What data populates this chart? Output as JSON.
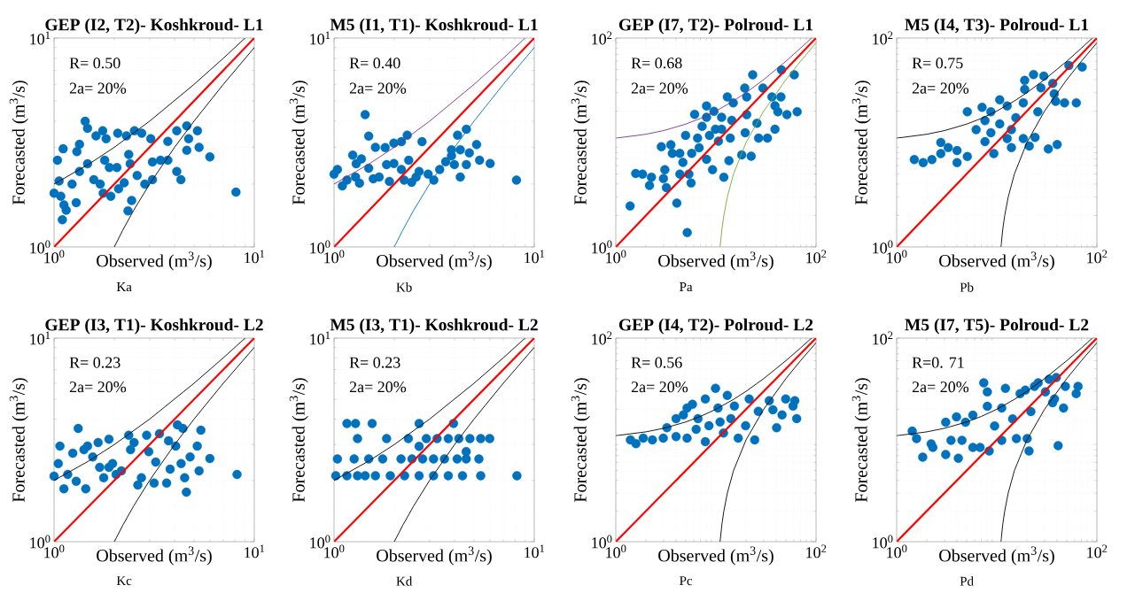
{
  "chart_data": [
    {
      "type": "scatter",
      "title": "GEP (I2, T2)- Koshkroud- L1",
      "xlabel": "Observed (m$^{3}$/s)",
      "ylabel": "Forecasted (m$^{3}$/s)",
      "annotations": [
        "R= 0.50",
        "2a= 20%",
        "Ka"
      ],
      "log": "xy",
      "grid": true,
      "xlim": [
        1,
        10
      ],
      "ylim": [
        1,
        10
      ],
      "xticks": [
        {
          "value": 1,
          "label": "10$^{0}$"
        },
        {
          "value": 10,
          "label": "10$^{1}$"
        }
      ],
      "yticks": [
        {
          "value": 1,
          "label": "10$^{0}$"
        },
        {
          "value": 10,
          "label": "10$^{1}$"
        }
      ],
      "series": [
        {
          "type": "scatter",
          "marker": "circle",
          "color": "#0072bd",
          "x": [
            1.43,
            1.47,
            1.75,
            1.62,
            1.82,
            2.08,
            2.52,
            2.74,
            2.3,
            3.04,
            3.7,
            4.1,
            4.6,
            5.2,
            4.7,
            5.3,
            6.0,
            4.6,
            3.4,
            3.1,
            4.1,
            4.3,
            3.1,
            2.84,
            2.6,
            2.36,
            2.4,
            2.06,
            1.89,
            1.79,
            1.47,
            1.34,
            1.3,
            1.34,
            1.11,
            1.04,
            1.06,
            1.0,
            1.08,
            1.12,
            1.1,
            1.15,
            1.29,
            1.23,
            1.58,
            1.7,
            1.76,
            1.92,
            2.24,
            2.44,
            2.34,
            8.1,
            3.7,
            2.1
          ],
          "values": [
            4.0,
            3.7,
            3.6,
            3.4,
            3.3,
            3.5,
            3.6,
            3.5,
            3.4,
            3.3,
            3.2,
            3.6,
            3.8,
            3.6,
            3.3,
            3.0,
            2.7,
            2.9,
            2.6,
            2.55,
            2.3,
            2.1,
            2.1,
            2.0,
            2.2,
            2.77,
            2.5,
            2.4,
            2.4,
            2.6,
            2.5,
            2.3,
            2.86,
            3.1,
            2.95,
            2.6,
            2.07,
            1.81,
            1.75,
            1.59,
            1.35,
            1.5,
            1.63,
            2.0,
            2.1,
            2.0,
            1.81,
            1.75,
            2.03,
            1.67,
            1.49,
            1.83,
            2.6,
            1.9
          ]
        },
        {
          "type": "line",
          "marker": "none",
          "color": "#ff0000",
          "x": [
            1,
            10
          ],
          "values": [
            1,
            10
          ]
        },
        {
          "type": "line",
          "marker": "none",
          "color": "#000000",
          "x": [
            1,
            1.5,
            2,
            3,
            5,
            7,
            9
          ],
          "values": [
            2,
            2.5,
            3,
            4,
            6,
            8,
            10
          ]
        },
        {
          "type": "line",
          "marker": "none",
          "color": "#000000",
          "x": [
            2,
            2.2,
            2.5,
            3,
            4,
            5,
            7,
            10
          ],
          "values": [
            1,
            1.2,
            1.5,
            2,
            3,
            4,
            6,
            9
          ]
        }
      ]
    },
    {
      "type": "scatter",
      "title": "M5 (I1, T1)- Koshkroud- L1",
      "xlabel": "Observed (m$^{3}$/s)",
      "ylabel": "Forecasted (m$^{3}$/s)",
      "annotations": [
        "R= 0.40",
        "2a= 20%",
        "Kb"
      ],
      "log": "xy",
      "grid": true,
      "xlim": [
        1,
        10
      ],
      "ylim": [
        1,
        10
      ],
      "xticks": [
        {
          "value": 1,
          "label": "10$^{0}$"
        },
        {
          "value": 10,
          "label": "10$^{1}$"
        }
      ],
      "yticks": [
        {
          "value": 1,
          "label": "10$^{0}$"
        },
        {
          "value": 10,
          "label": "10$^{1}$"
        }
      ],
      "series": [
        {
          "type": "scatter",
          "marker": "circle",
          "color": "#0072bd",
          "x": [
            1.43,
            1.49,
            1.24,
            1.0,
            1.04,
            1.1,
            1.16,
            1.28,
            1.34,
            1.29,
            1.37,
            1.49,
            1.57,
            1.68,
            1.61,
            1.8,
            1.99,
            2.17,
            2.32,
            1.83,
            1.99,
            2.17,
            2.36,
            1.89,
            2.24,
            2.44,
            2.66,
            2.75,
            2.57,
            2.95,
            3.15,
            3.37,
            3.61,
            3.86,
            4.14,
            4.58,
            4.27,
            4.74,
            4.58,
            4.27,
            5.15,
            5.33,
            6.02,
            8.15,
            3.99,
            3.86
          ],
          "values": [
            4.3,
            3.39,
            2.75,
            2.23,
            2.35,
            1.96,
            2.09,
            2.16,
            2.02,
            2.5,
            2.64,
            2.38,
            2.12,
            2.16,
            3.0,
            2.99,
            3.14,
            3.19,
            3.43,
            2.48,
            2.51,
            2.35,
            2.6,
            2.06,
            2.09,
            2.04,
            2.3,
            3.19,
            2.16,
            2.23,
            2.09,
            2.35,
            2.56,
            2.73,
            3.43,
            3.66,
            2.92,
            2.82,
            2.48,
            2.16,
            3.09,
            2.6,
            2.51,
            2.09,
            2.48,
            2.92
          ]
        },
        {
          "type": "line",
          "marker": "none",
          "color": "#ff0000",
          "x": [
            1,
            10
          ],
          "values": [
            1,
            10
          ]
        },
        {
          "type": "line",
          "marker": "none",
          "color": "#7e2f8e",
          "x": [
            1,
            1.5,
            2,
            3,
            5,
            7,
            9
          ],
          "values": [
            2,
            2.5,
            3,
            4,
            6,
            8,
            10
          ]
        },
        {
          "type": "line",
          "marker": "none",
          "color": "#0072bd",
          "x": [
            2,
            2.2,
            2.5,
            3,
            4,
            5,
            7,
            10
          ],
          "values": [
            1,
            1.2,
            1.5,
            2,
            3,
            4,
            6,
            9
          ]
        }
      ]
    },
    {
      "type": "scatter",
      "title": "GEP (I7, T2)- Polroud- L1",
      "xlabel": "Observed (m$^{3}$/s)",
      "ylabel": "Forecasted (m$^{3}$/s)",
      "annotations": [
        "R= 0.68",
        "2a= 20%",
        "Pa"
      ],
      "log": "xy",
      "grid": true,
      "xlim": [
        1,
        100
      ],
      "ylim": [
        1,
        100
      ],
      "xticks": [
        {
          "value": 1,
          "label": "10$^{0}$"
        },
        {
          "value": 100,
          "label": "10$^{2}$"
        }
      ],
      "yticks": [
        {
          "value": 1,
          "label": "10$^{0}$"
        },
        {
          "value": 100,
          "label": "10$^{2}$"
        }
      ],
      "series": [
        {
          "type": "scatter",
          "marker": "circle",
          "color": "#0072bd",
          "x": [
            1.39,
            1.58,
            1.85,
            2.27,
            2.17,
            3.2,
            2.99,
            3.09,
            2.85,
            3.55,
            3.67,
            4.07,
            5.17,
            4.36,
            5.37,
            5.65,
            4.68,
            5.73,
            4.98,
            6.56,
            7.28,
            8.06,
            6.8,
            8.06,
            9.25,
            8.63,
            9.9,
            9.55,
            11.4,
            10.6,
            12.0,
            13.5,
            13.9,
            11.4,
            14.4,
            18.1,
            22.5,
            19.6,
            20.3,
            19.4,
            23.3,
            20.3,
            25.7,
            26.7,
            32.7,
            38.9,
            29.5,
            36.3,
            44.6,
            38.9,
            41.6,
            51.2,
            64.8,
            60.6,
            45.2,
            6.13,
            8.06,
            4.36,
            13.0,
            14.9
          ],
          "values": [
            2.47,
            5.05,
            4.98,
            4.66,
            3.88,
            3.7,
            4.52,
            5.5,
            9.1,
            9.5,
            7.87,
            2.63,
            1.37,
            4.98,
            4.98,
            4.09,
            6.46,
            7.87,
            11.7,
            11.0,
            14.3,
            17.4,
            8.9,
            6.9,
            5.5,
            11.7,
            13.4,
            19.9,
            17.4,
            10.3,
            4.66,
            6.7,
            11.0,
            13.4,
            16.3,
            7.6,
            7.4,
            12.4,
            18.5,
            33.2,
            44.5,
            27.3,
            15.3,
            11.0,
            11.0,
            13.4,
            33.2,
            27.3,
            27.3,
            22.5,
            19.7,
            18.5,
            19.7,
            44.5,
            49.5,
            18.6,
            22.4,
            7.87,
            27.3,
            24
          ]
        },
        {
          "type": "line",
          "marker": "none",
          "color": "#ff0000",
          "x": [
            1,
            100
          ],
          "values": [
            1,
            100
          ]
        },
        {
          "type": "line",
          "marker": "none",
          "color": "#7e2f8e",
          "x": [
            1,
            2,
            3,
            5,
            7,
            10,
            15,
            20,
            30,
            50,
            70,
            90
          ],
          "values": [
            11,
            12,
            13,
            15,
            17,
            20,
            25,
            30,
            40,
            60,
            80,
            100
          ]
        },
        {
          "type": "line",
          "marker": "none",
          "color": "#77ac30",
          "x": [
            11,
            11.5,
            12,
            13,
            15,
            20,
            30,
            50,
            70,
            100
          ],
          "values": [
            1,
            1.5,
            2,
            3,
            5,
            10,
            20,
            40,
            60,
            90
          ]
        }
      ]
    },
    {
      "type": "scatter",
      "title": "M5 (I4, T3)- Polroud- L1",
      "xlabel": "Observed (m$^{3}$/s)",
      "ylabel": "Forecasted (m$^{3}$/s)",
      "annotations": [
        "R= 0.75",
        "2a= 20%",
        "Pb"
      ],
      "log": "xy",
      "grid": true,
      "xlim": [
        1,
        100
      ],
      "ylim": [
        1,
        100
      ],
      "xticks": [
        {
          "value": 1,
          "label": "10$^{0}$"
        },
        {
          "value": 100,
          "label": "10$^{2}$"
        }
      ],
      "yticks": [
        {
          "value": 1,
          "label": "10$^{0}$"
        },
        {
          "value": 100,
          "label": "10$^{2}$"
        }
      ],
      "series": [
        {
          "type": "scatter",
          "marker": "circle",
          "color": "#0072bd",
          "x": [
            1.5,
            1.84,
            2.25,
            2.76,
            2.76,
            3.27,
            4.01,
            4.01,
            5.08,
            5.08,
            6.22,
            7.13,
            7.62,
            8.73,
            9.34,
            8.73,
            10.7,
            12.7,
            10.7,
            12.7,
            14.0,
            15.5,
            14.0,
            18.4,
            21.1,
            24.1,
            18.4,
            19.0,
            19.0,
            23.3,
            29.5,
            27.6,
            36.2,
            37.5,
            38.7,
            47.5,
            62.3,
            52.5,
            71.3,
            32.7,
            40.1,
            25.7,
            7.62
          ],
          "values": [
            6.86,
            6.42,
            6.86,
            7.83,
            10,
            8.94,
            6.42,
            8.37,
            7.34,
            19.7,
            13.3,
            21.7,
            10.2,
            12.4,
            7.83,
            19.7,
            25.6,
            22.4,
            15.1,
            10.9,
            13.3,
            17.3,
            8.94,
            10.9,
            9.25,
            11.2,
            24.0,
            32.3,
            39.3,
            44.8,
            43.3,
            33.4,
            36.8,
            29.2,
            24.8,
            24.0,
            24.0,
            54.6,
            52.8,
            8.66,
            9.55,
            19.7,
            16.2
          ]
        },
        {
          "type": "line",
          "marker": "none",
          "color": "#ff0000",
          "x": [
            1,
            100
          ],
          "values": [
            1,
            100
          ]
        },
        {
          "type": "line",
          "marker": "none",
          "color": "#000000",
          "x": [
            1,
            2,
            3,
            5,
            7,
            10,
            15,
            20,
            30,
            50,
            70,
            90
          ],
          "values": [
            11,
            12,
            13,
            15,
            17,
            20,
            25,
            30,
            40,
            60,
            80,
            100
          ]
        },
        {
          "type": "line",
          "marker": "none",
          "color": "#000000",
          "x": [
            11,
            11.5,
            12,
            13,
            15,
            20,
            30,
            50,
            70,
            100
          ],
          "values": [
            1,
            1.5,
            2,
            3,
            5,
            10,
            20,
            40,
            60,
            90
          ]
        }
      ]
    },
    {
      "type": "scatter",
      "title": "GEP (I3, T1)- Koshkroud- L2",
      "xlabel": "Observed (m$^{3}$/s)",
      "ylabel": "Forecasted (m$^{3}$/s)",
      "annotations": [
        "R= 0.23",
        "2a= 20%",
        "Kc"
      ],
      "log": "xy",
      "grid": true,
      "xlim": [
        1,
        10
      ],
      "ylim": [
        1,
        10
      ],
      "xticks": [
        {
          "value": 1,
          "label": "10$^{0}$"
        },
        {
          "value": 10,
          "label": "10$^{1}$"
        }
      ],
      "yticks": [
        {
          "value": 1,
          "label": "10$^{0}$"
        },
        {
          "value": 10,
          "label": "10$^{1}$"
        }
      ],
      "series": [
        {
          "type": "scatter",
          "marker": "circle",
          "color": "#0072bd",
          "x": [
            1.0,
            1.05,
            1.07,
            1.12,
            1.17,
            1.24,
            1.29,
            1.32,
            1.44,
            1.47,
            1.56,
            1.66,
            1.69,
            1.77,
            1.88,
            1.88,
            2.04,
            2.17,
            2.36,
            2.41,
            2.51,
            2.62,
            2.73,
            2.9,
            2.97,
            3.16,
            3.22,
            3.36,
            3.65,
            3.73,
            3.8,
            4.05,
            4.13,
            4.31,
            4.4,
            4.58,
            4.49,
            4.78,
            5.19,
            5.41,
            5.3,
            6.0,
            8.2,
            1.41,
            1.96
          ],
          "values": [
            2.1,
            2.42,
            2.95,
            1.82,
            2.14,
            2.72,
            1.98,
            3.6,
            1.82,
            2.95,
            2.61,
            3.07,
            2.32,
            2.06,
            3.19,
            2.32,
            2.14,
            2.23,
            3.33,
            2.83,
            3.07,
            1.9,
            2.06,
            3.33,
            2.77,
            1.94,
            2.46,
            3.39,
            1.94,
            3.13,
            2.27,
            2.95,
            3.75,
            2.42,
            3.6,
            1.75,
            2.06,
            2.61,
            2.95,
            3.53,
            2.23,
            2.56,
            2.14,
            2.83,
            2.42
          ]
        },
        {
          "type": "line",
          "marker": "none",
          "color": "#ff0000",
          "x": [
            1,
            10
          ],
          "values": [
            1,
            10
          ]
        },
        {
          "type": "line",
          "marker": "none",
          "color": "#000000",
          "x": [
            1,
            1.5,
            2,
            3,
            5,
            7,
            9
          ],
          "values": [
            2,
            2.5,
            3,
            4,
            6,
            8,
            10
          ]
        },
        {
          "type": "line",
          "marker": "none",
          "color": "#000000",
          "x": [
            2,
            2.2,
            2.5,
            3,
            4,
            5,
            7,
            10
          ],
          "values": [
            1,
            1.2,
            1.5,
            2,
            3,
            4,
            6,
            9
          ]
        }
      ]
    },
    {
      "type": "scatter",
      "title": "M5 (I3, T1)- Koshkroud- L2",
      "xlabel": "Observed (m$^{3}$/s)",
      "ylabel": "Forecasted (m$^{3}$/s)",
      "annotations": [
        "R= 0.23",
        "2a= 20%",
        "Kd"
      ],
      "log": "xy",
      "grid": true,
      "xlim": [
        1,
        10
      ],
      "ylim": [
        1,
        10
      ],
      "xticks": [
        {
          "value": 1,
          "label": "10$^{0}$"
        },
        {
          "value": 10,
          "label": "10$^{1}$"
        }
      ],
      "yticks": [
        {
          "value": 1,
          "label": "10$^{0}$"
        },
        {
          "value": 10,
          "label": "10$^{1}$"
        }
      ],
      "series": [
        {
          "type": "scatter",
          "marker": "circle",
          "color": "#0072bd",
          "x": [
            1.02,
            1.16,
            1.31,
            1.43,
            1.61,
            1.91,
            2.25,
            2.66,
            3.14,
            3.72,
            4.38,
            5.4,
            8.19,
            1.04,
            1.26,
            1.49,
            1.75,
            2.16,
            2.45,
            2.77,
            3.14,
            3.56,
            4.12,
            4.57,
            5.29,
            1.31,
            1.83,
            2.35,
            2.89,
            3.27,
            3.72,
            4.2,
            4.77,
            5.4,
            5.99,
            1.16,
            1.28,
            1.55,
            2.66,
            3.95,
            2.66,
            4.57
          ],
          "values": [
            2.11,
            2.11,
            2.11,
            2.11,
            2.11,
            2.11,
            2.11,
            2.11,
            2.11,
            2.11,
            2.11,
            2.11,
            2.11,
            2.55,
            2.55,
            2.55,
            2.55,
            2.55,
            2.55,
            2.55,
            2.55,
            2.55,
            2.55,
            2.55,
            2.55,
            3.21,
            3.21,
            3.21,
            3.21,
            3.21,
            3.21,
            3.21,
            3.21,
            3.21,
            3.21,
            3.81,
            3.81,
            3.81,
            3.81,
            3.81,
            2.94,
            2.77
          ]
        },
        {
          "type": "line",
          "marker": "none",
          "color": "#ff0000",
          "x": [
            1,
            10
          ],
          "values": [
            1,
            10
          ]
        },
        {
          "type": "line",
          "marker": "none",
          "color": "#000000",
          "x": [
            1,
            1.5,
            2,
            3,
            5,
            7,
            9
          ],
          "values": [
            2,
            2.5,
            3,
            4,
            6,
            8,
            10
          ]
        },
        {
          "type": "line",
          "marker": "none",
          "color": "#000000",
          "x": [
            2,
            2.2,
            2.5,
            3,
            4,
            5,
            7,
            10
          ],
          "values": [
            1,
            1.2,
            1.5,
            2,
            3,
            4,
            6,
            9
          ]
        }
      ]
    },
    {
      "type": "scatter",
      "title": "GEP (I4, T2)- Polroud- L2",
      "xlabel": "Observed (m$^{3}$/s)",
      "ylabel": "Forecasted (m$^{3}$/s)",
      "annotations": [
        "R= 0.56",
        "2a= 20%",
        "Pc"
      ],
      "log": "xy",
      "grid": true,
      "xlim": [
        1,
        100
      ],
      "ylim": [
        1,
        100
      ],
      "xticks": [
        {
          "value": 1,
          "label": "10$^{0}$"
        },
        {
          "value": 100,
          "label": "10$^{2}$"
        }
      ],
      "yticks": [
        {
          "value": 1,
          "label": "10$^{0}$"
        },
        {
          "value": 100,
          "label": "10$^{2}$"
        }
      ],
      "series": [
        {
          "type": "scatter",
          "marker": "circle",
          "color": "#0072bd",
          "x": [
            1.4,
            1.59,
            1.88,
            2.32,
            2.98,
            3.24,
            4.0,
            4.0,
            5.15,
            5.15,
            6.35,
            6.62,
            7.84,
            7.84,
            8.52,
            9.91,
            10.5,
            11.9,
            13.0,
            14.1,
            15.3,
            16.7,
            19.8,
            21.5,
            24.4,
            26.5,
            34.1,
            37.1,
            40.4,
            45.8,
            49.8,
            61.4,
            64.1,
            58.9,
            4.73,
            5.83,
            11.0
          ],
          "values": [
            10,
            9.2,
            10.4,
            10,
            10.4,
            13.2,
            16.2,
            10.8,
            20.6,
            10.4,
            12.7,
            16.2,
            25.2,
            9.6,
            13.8,
            32.1,
            20.6,
            11.7,
            27.4,
            16.2,
            21.5,
            10.4,
            13.8,
            25.2,
            10,
            19.1,
            24.3,
            19.8,
            13.2,
            17.6,
            25.2,
            24.3,
            16.2,
            21.5,
            17.6,
            22.4,
            15.0
          ]
        },
        {
          "type": "line",
          "marker": "none",
          "color": "#ff0000",
          "x": [
            1,
            100
          ],
          "values": [
            1,
            100
          ]
        },
        {
          "type": "line",
          "marker": "none",
          "color": "#000000",
          "x": [
            1,
            2,
            3,
            5,
            7,
            10,
            15,
            20,
            30,
            50,
            70,
            90
          ],
          "values": [
            11,
            12,
            13,
            15,
            17,
            20,
            25,
            30,
            40,
            60,
            80,
            100
          ]
        },
        {
          "type": "line",
          "marker": "none",
          "color": "#000000",
          "x": [
            11,
            11.5,
            12,
            13,
            15,
            20,
            30,
            50,
            70,
            100
          ],
          "values": [
            1,
            1.5,
            2,
            3,
            5,
            10,
            20,
            40,
            60,
            90
          ]
        }
      ]
    },
    {
      "type": "scatter",
      "title": "M5 (I7, T5)- Polroud- L2",
      "xlabel": "Observed (m$^{3}$/s)",
      "ylabel": "Forecasted (m$^{3}$/s)",
      "annotations": [
        "R=0. 71",
        "2a= 20%",
        "Pd"
      ],
      "log": "xy",
      "grid": true,
      "xlim": [
        1,
        100
      ],
      "ylim": [
        1,
        100
      ],
      "xticks": [
        {
          "value": 1,
          "label": "10$^{0}$"
        },
        {
          "value": 100,
          "label": "10$^{2}$"
        }
      ],
      "yticks": [
        {
          "value": 1,
          "label": "10$^{0}$"
        },
        {
          "value": 100,
          "label": "10$^{2}$"
        }
      ],
      "series": [
        {
          "type": "scatter",
          "marker": "circle",
          "color": "#0072bd",
          "x": [
            1.43,
            1.58,
            1.82,
            2.21,
            2.3,
            3.09,
            3.09,
            3.49,
            3.96,
            4.13,
            4.49,
            4.87,
            5.77,
            5.77,
            7.41,
            8.05,
            8.05,
            6.81,
            8.4,
            9.51,
            11.2,
            11.2,
            12.2,
            14.4,
            15.7,
            17.1,
            19.3,
            20.1,
            21.0,
            21.9,
            23.8,
            25.9,
            30.6,
            33.3,
            36.1,
            39.3,
            41.0,
            46.4,
            48.4,
            64.8,
            62.1,
            37.7
          ],
          "values": [
            12.2,
            10.3,
            6.78,
            9.15,
            8.43,
            7.18,
            14.9,
            9.91,
            16.8,
            6.61,
            9.91,
            14.9,
            8.43,
            17.5,
            36.3,
            29.6,
            21.4,
            8.43,
            7.78,
            13.7,
            20.6,
            9.91,
            32.1,
            16.1,
            10.3,
            28.5,
            30.8,
            10.3,
            7.78,
            19.0,
            33.5,
            36.3,
            29.6,
            39.4,
            23.2,
            41.0,
            8.79,
            20.6,
            33.5,
            33.5,
            28.5,
            25.2
          ]
        },
        {
          "type": "line",
          "marker": "none",
          "color": "#ff0000",
          "x": [
            1,
            100
          ],
          "values": [
            1,
            100
          ]
        },
        {
          "type": "line",
          "marker": "none",
          "color": "#000000",
          "x": [
            1,
            2,
            3,
            5,
            7,
            10,
            15,
            20,
            30,
            50,
            70,
            90
          ],
          "values": [
            11,
            12,
            13,
            15,
            17,
            20,
            25,
            30,
            40,
            60,
            80,
            100
          ]
        },
        {
          "type": "line",
          "marker": "none",
          "color": "#000000",
          "x": [
            11,
            11.5,
            12,
            13,
            15,
            20,
            30,
            50,
            70,
            100
          ],
          "values": [
            1,
            1.5,
            2,
            3,
            5,
            10,
            20,
            40,
            60,
            90
          ]
        }
      ]
    }
  ]
}
